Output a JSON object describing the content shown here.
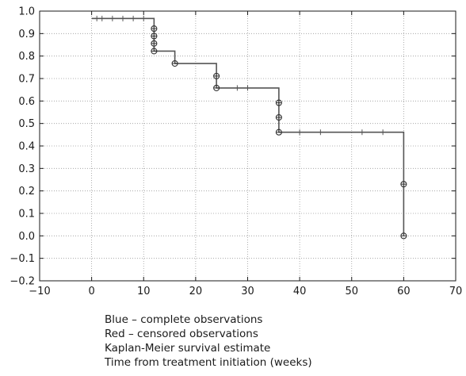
{
  "chart_data": {
    "type": "line",
    "xlim": [
      -10,
      70
    ],
    "ylim": [
      -0.2,
      1.0
    ],
    "x_ticks": [
      -10,
      0,
      10,
      20,
      30,
      40,
      50,
      60,
      70
    ],
    "y_ticks": [
      -0.2,
      -0.1,
      0.0,
      0.1,
      0.2,
      0.3,
      0.4,
      0.5,
      0.6,
      0.7,
      0.8,
      0.9,
      1.0
    ],
    "x_tick_labels": [
      "−10",
      "0",
      "10",
      "20",
      "30",
      "40",
      "50",
      "60",
      "70"
    ],
    "y_tick_labels": [
      "−0.2",
      "−0.1",
      "0.0",
      "0.1",
      "0.2",
      "0.3",
      "0.4",
      "0.5",
      "0.6",
      "0.7",
      "0.8",
      "0.9",
      "1.0"
    ],
    "grid": true,
    "line_color": "#555555",
    "km_curve": {
      "x": [
        0,
        12,
        12,
        16,
        16,
        24,
        24,
        36,
        36,
        60,
        60
      ],
      "y": [
        0.967,
        0.967,
        0.822,
        0.822,
        0.767,
        0.767,
        0.658,
        0.658,
        0.461,
        0.461,
        0.0
      ]
    },
    "complete_observations": [
      {
        "x": 12,
        "y": 0.922
      },
      {
        "x": 12,
        "y": 0.889
      },
      {
        "x": 12,
        "y": 0.856
      },
      {
        "x": 12,
        "y": 0.822
      },
      {
        "x": 16,
        "y": 0.767
      },
      {
        "x": 24,
        "y": 0.711
      },
      {
        "x": 24,
        "y": 0.658
      },
      {
        "x": 36,
        "y": 0.592
      },
      {
        "x": 36,
        "y": 0.527
      },
      {
        "x": 36,
        "y": 0.461
      },
      {
        "x": 60,
        "y": 0.23
      },
      {
        "x": 60,
        "y": 0.0
      }
    ],
    "censored_observations": [
      {
        "x": 1,
        "y": 0.967
      },
      {
        "x": 2,
        "y": 0.967
      },
      {
        "x": 4,
        "y": 0.967
      },
      {
        "x": 6,
        "y": 0.967
      },
      {
        "x": 8,
        "y": 0.967
      },
      {
        "x": 10,
        "y": 0.967
      },
      {
        "x": 28,
        "y": 0.658
      },
      {
        "x": 30,
        "y": 0.658
      },
      {
        "x": 40,
        "y": 0.461
      },
      {
        "x": 44,
        "y": 0.461
      },
      {
        "x": 52,
        "y": 0.461
      },
      {
        "x": 56,
        "y": 0.461
      }
    ]
  },
  "captions": {
    "line1": "Blue – complete observations",
    "line2": "Red – censored observations",
    "line3": "Kaplan-Meier survival estimate",
    "line4": "Time from treatment initiation (weeks)"
  }
}
